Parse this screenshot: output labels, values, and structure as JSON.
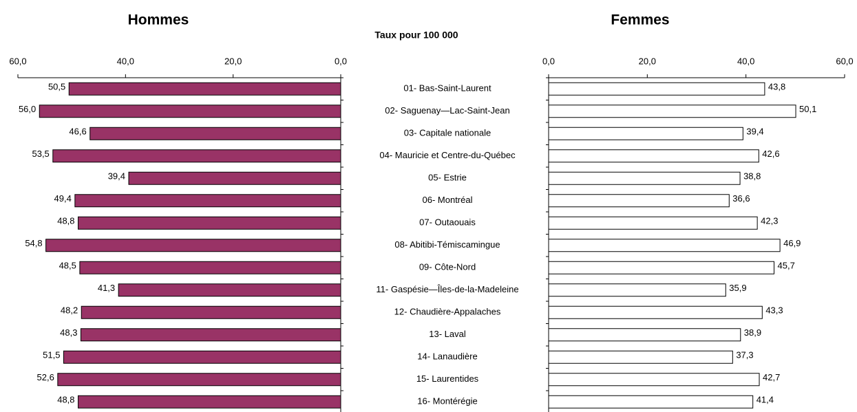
{
  "chart_data": {
    "type": "butterfly",
    "subtitle": "Taux pour 100 000",
    "categories": [
      "01- Bas-Saint-Laurent",
      "02- Saguenay—Lac-Saint-Jean",
      "03- Capitale nationale",
      "04- Mauricie et Centre-du-Québec",
      "05- Estrie",
      "06- Montréal",
      "07- Outaouais",
      "08- Abitibi-Témiscamingue",
      "09- Côte-Nord",
      "11- Gaspésie—Îles-de-la-Madeleine",
      "12- Chaudière-Appalaches",
      "13- Laval",
      "14- Lanaudière",
      "15- Laurentides",
      "16- Montérégie"
    ],
    "series": [
      {
        "name": "Hommes",
        "color": "#993366",
        "reversed": true,
        "values": [
          50.5,
          56.0,
          46.6,
          53.5,
          39.4,
          49.4,
          48.8,
          54.8,
          48.5,
          41.3,
          48.2,
          48.3,
          51.5,
          52.6,
          48.8
        ],
        "value_labels": [
          "50,5",
          "56,0",
          "46,6",
          "53,5",
          "39,4",
          "49,4",
          "48,8",
          "54,8",
          "48,5",
          "41,3",
          "48,2",
          "48,3",
          "51,5",
          "52,6",
          "48,8"
        ],
        "xlim": [
          0,
          60
        ],
        "xticks": [
          {
            "value": 0,
            "label": "0,0"
          },
          {
            "value": 20,
            "label": "20,0"
          },
          {
            "value": 40,
            "label": "40,0"
          },
          {
            "value": 60,
            "label": "60,0"
          }
        ]
      },
      {
        "name": "Femmes",
        "color": "#ffffff",
        "reversed": false,
        "values": [
          43.8,
          50.1,
          39.4,
          42.6,
          38.8,
          36.6,
          42.3,
          46.9,
          45.7,
          35.9,
          43.3,
          38.9,
          37.3,
          42.7,
          41.4
        ],
        "value_labels": [
          "43,8",
          "50,1",
          "39,4",
          "42,6",
          "38,8",
          "36,6",
          "42,3",
          "46,9",
          "45,7",
          "35,9",
          "43,3",
          "38,9",
          "37,3",
          "42,7",
          "41,4"
        ],
        "xlim": [
          0,
          60
        ],
        "xticks": [
          {
            "value": 0,
            "label": "0,0"
          },
          {
            "value": 20,
            "label": "20,0"
          },
          {
            "value": 40,
            "label": "40,0"
          },
          {
            "value": 60,
            "label": "60,0"
          }
        ]
      }
    ]
  }
}
